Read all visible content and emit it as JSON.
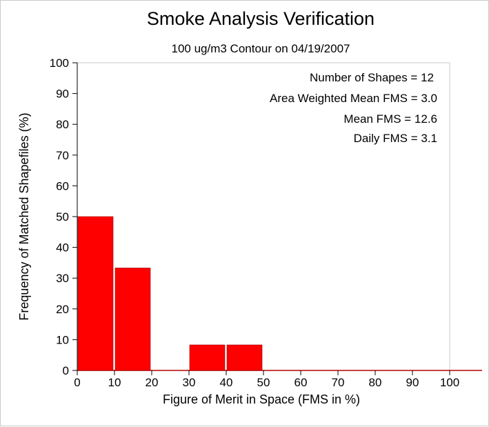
{
  "chart_data": {
    "type": "bar",
    "title": "Smoke Analysis Verification",
    "subtitle": "100 ug/m3 Contour on 04/19/2007",
    "xlabel": "Figure of Merit in Space (FMS in %)",
    "ylabel": "Frequency of Matched Shapefiles (%)",
    "xlim": [
      0,
      100
    ],
    "ylim": [
      0,
      100
    ],
    "xticks": [
      0,
      10,
      20,
      30,
      40,
      50,
      60,
      70,
      80,
      90,
      100
    ],
    "yticks": [
      0,
      10,
      20,
      30,
      40,
      50,
      60,
      70,
      80,
      90,
      100
    ],
    "bins": [
      {
        "start": 0,
        "end": 10,
        "value": 50
      },
      {
        "start": 10,
        "end": 20,
        "value": 33.3
      },
      {
        "start": 20,
        "end": 30,
        "value": 0
      },
      {
        "start": 30,
        "end": 40,
        "value": 8.3
      },
      {
        "start": 40,
        "end": 50,
        "value": 8.3
      },
      {
        "start": 50,
        "end": 60,
        "value": 0
      },
      {
        "start": 60,
        "end": 70,
        "value": 0
      },
      {
        "start": 70,
        "end": 80,
        "value": 0
      },
      {
        "start": 80,
        "end": 90,
        "value": 0
      },
      {
        "start": 90,
        "end": 100,
        "value": 0
      }
    ],
    "bar_color": "#ff0000",
    "grid": false,
    "annotations": [
      "Number of Shapes = 12",
      "Area Weighted Mean FMS = 3.0",
      "Mean FMS = 12.6",
      "Daily FMS = 3.1"
    ]
  }
}
